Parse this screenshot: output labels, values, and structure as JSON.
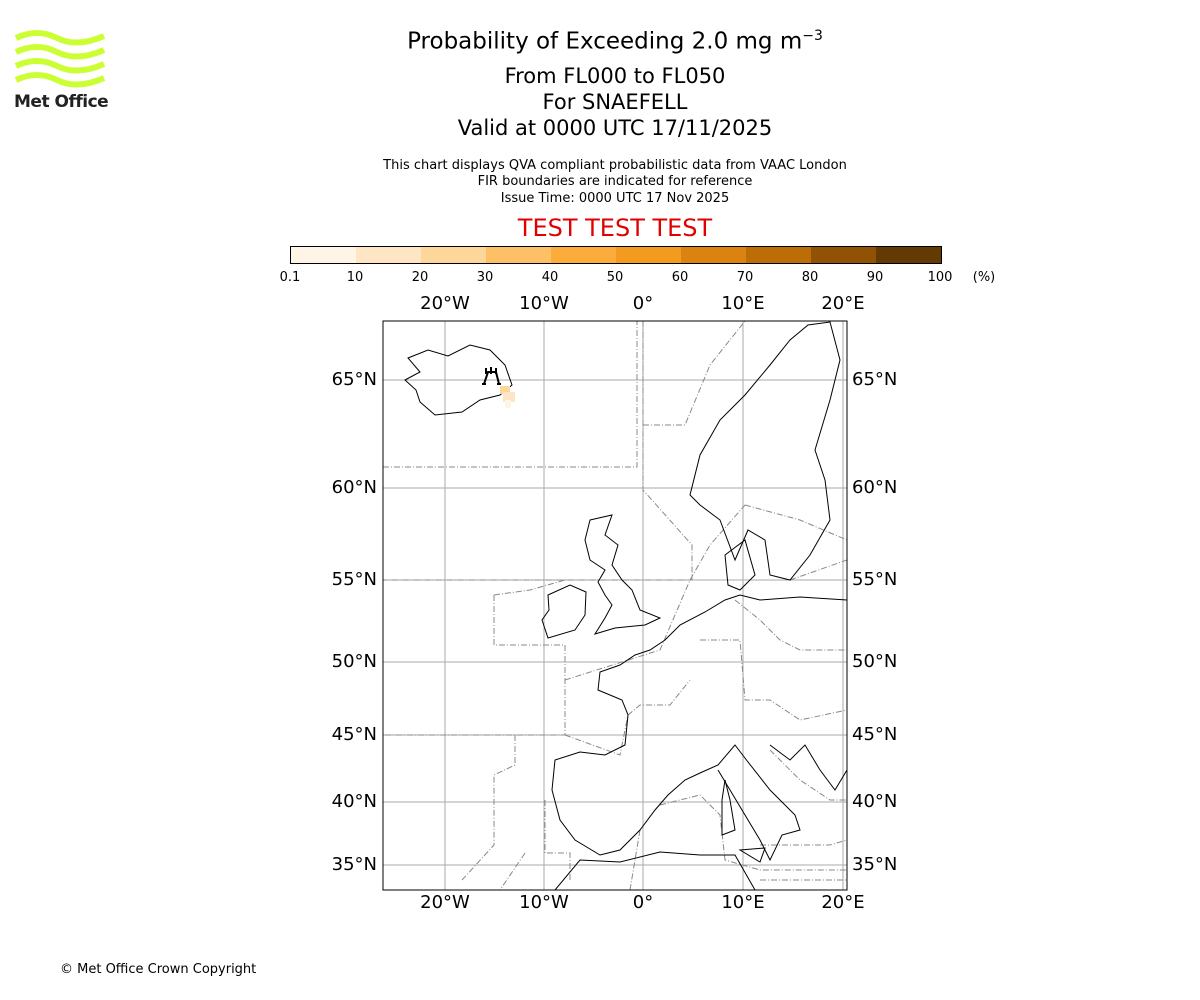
{
  "header": {
    "title": "Probability of Exceeding 2.0 mg m",
    "title_exp": "−3",
    "levels": "From FL000 to FL050",
    "volcano": "For SNAEFELL",
    "valid": "Valid at 0000 UTC 17/11/2025",
    "note1": "This chart displays QVA compliant probabilistic data from VAAC London",
    "note2": "FIR boundaries are indicated for reference",
    "issue": "Issue Time: 0000 UTC 17 Nov 2025",
    "test": "TEST TEST TEST"
  },
  "logo": {
    "text": "Met Office",
    "color": "#ccff33"
  },
  "colorbar": {
    "labels": [
      "0.1",
      "10",
      "20",
      "30",
      "40",
      "50",
      "60",
      "70",
      "80",
      "90",
      "100"
    ],
    "unit": "(%)",
    "colors": [
      "#fff5e6",
      "#fee6c4",
      "#fdd699",
      "#fdc066",
      "#fcac3a",
      "#f39b1f",
      "#db8310",
      "#bc6d06",
      "#925206",
      "#633a04"
    ]
  },
  "map": {
    "lon_labels": [
      "20°W",
      "10°W",
      "0°",
      "10°E",
      "20°E"
    ],
    "lat_labels": [
      "65°N",
      "60°N",
      "55°N",
      "50°N",
      "45°N",
      "40°N",
      "35°N"
    ],
    "volcano_icon": "volcano-icon"
  },
  "chart_data": {
    "type": "heatmap",
    "title": "Probability of Exceeding 2.0 mg m-3",
    "colorbar_bounds": [
      0.1,
      10,
      20,
      30,
      40,
      50,
      60,
      70,
      80,
      90,
      100
    ],
    "colorbar_unit": "%",
    "lon_range": [
      -26,
      20.5
    ],
    "lat_range": [
      33,
      68
    ],
    "max_probability_region": "0.1-20 % near SE Iceland"
  },
  "footer": {
    "copyright": "© Met Office Crown Copyright"
  }
}
